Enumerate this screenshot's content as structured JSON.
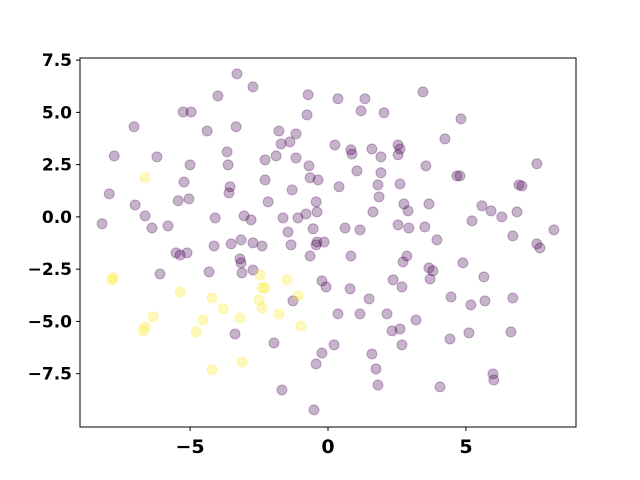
{
  "chart_data": {
    "type": "scatter",
    "xlim": [
      -8.99,
      8.99
    ],
    "ylim": [
      -10.05,
      7.6
    ],
    "xticks": [
      {
        "value": -5,
        "label": "−5"
      },
      0,
      5
    ],
    "yticks": [
      {
        "value": -7.5,
        "label": "−7.5"
      },
      {
        "value": -5,
        "label": "−5.0"
      },
      {
        "value": -2.5,
        "label": "−2.5"
      },
      {
        "value": 0,
        "label": "0.0"
      },
      2.5,
      {
        "value": 5,
        "label": "5.0"
      },
      7.5
    ],
    "grid": false,
    "series": [
      {
        "color": "#440154",
        "x": [
          -3.3,
          -2.72,
          -3.99,
          -5.25,
          -4.96,
          -7.03,
          -4.38,
          -3.33,
          1.2,
          1.34,
          -0.72,
          0.36,
          2.03,
          3.44,
          4.82,
          2.54,
          2.61,
          4.24,
          -1.78,
          -1.16,
          -0.76,
          -1.7,
          -1.38,
          -1.88,
          -1.16,
          -3.66,
          -3.62,
          -2.28,
          0.25,
          0.83,
          0.87,
          1.59,
          1.92,
          2.54,
          3.55,
          7.57,
          -7.75,
          -6.2,
          -5.0,
          -5.22,
          -3.55,
          -3.59,
          -2.28,
          -0.69,
          -0.65,
          -0.36,
          -1.3,
          0.4,
          1.05,
          1.92,
          1.81,
          1.85,
          2.61,
          2.75,
          2.9,
          3.66,
          4.78,
          4.67,
          6.92,
          7.03,
          5.58,
          5.91,
          6.3,
          6.85,
          -7.93,
          -6.99,
          -6.63,
          -6.38,
          -5.43,
          -5.04,
          -5.36,
          -5.8,
          -4.09,
          -3.04,
          -2.17,
          -1.63,
          -1.09,
          -0.8,
          -0.4,
          -0.43,
          -1.45,
          -2.79,
          -4.13,
          -3.51,
          -3.15,
          -2.72,
          -2.39,
          -0.54,
          -0.4,
          -0.14,
          0.62,
          1.16,
          1.63,
          2.54,
          2.93,
          3.51,
          3.95,
          5.22,
          6.7,
          8.19,
          -8.19,
          -6.09,
          -5.51,
          -5.11,
          -4.31,
          -3.19,
          -3.15,
          -3.12,
          -2.72,
          -1.34,
          -0.65,
          -0.43,
          -0.22,
          -0.07,
          0.83,
          0.8,
          1.49,
          2.36,
          2.72,
          2.86,
          2.68,
          3.66,
          3.7,
          3.8,
          4.46,
          4.89,
          5.18,
          5.69,
          5.65,
          7.57,
          7.68,
          -3.37,
          -1.96,
          -1.27,
          0.36,
          1.16,
          2.14,
          2.32,
          2.61,
          3.19,
          2.68,
          1.59,
          0.22,
          -0.22,
          -0.43,
          1.74,
          1.81,
          -1.67,
          -0.51,
          4.06,
          6.01,
          5.98,
          5.11,
          4.42,
          6.63,
          6.7
        ],
        "y": [
          6.84,
          6.22,
          5.79,
          5.02,
          5.02,
          4.31,
          4.11,
          4.31,
          5.07,
          5.65,
          5.84,
          5.65,
          4.98,
          5.98,
          4.69,
          3.44,
          3.25,
          3.73,
          4.11,
          3.97,
          4.88,
          3.49,
          3.59,
          2.92,
          2.82,
          3.11,
          2.49,
          2.73,
          3.44,
          3.21,
          3.01,
          3.25,
          2.87,
          2.97,
          2.44,
          2.54,
          2.92,
          2.87,
          2.49,
          1.67,
          1.44,
          1.15,
          1.77,
          2.44,
          1.87,
          1.77,
          1.29,
          1.44,
          2.2,
          2.11,
          1.53,
          0.96,
          1.58,
          0.62,
          0.29,
          0.62,
          1.96,
          1.96,
          1.53,
          1.48,
          0.53,
          0.29,
          0,
          0.24,
          1.1,
          0.57,
          0.05,
          -0.53,
          0.77,
          0.86,
          -1.82,
          -0.43,
          -0.05,
          0.05,
          0.72,
          -0.05,
          -0.05,
          0.14,
          0.24,
          0.72,
          -0.72,
          -0.14,
          -1.39,
          -1.29,
          -1.1,
          -1.24,
          -1.39,
          -0.57,
          -1.2,
          -1.2,
          -0.53,
          -0.62,
          0.24,
          -0.38,
          -0.53,
          -0.48,
          -1.1,
          -0.19,
          -0.91,
          -0.62,
          -0.33,
          -2.73,
          -1.72,
          -1.72,
          -2.63,
          -2.01,
          -2.2,
          -2.68,
          -2.54,
          -1.34,
          -1.87,
          -1.34,
          -3.06,
          -3.35,
          -1.87,
          -3.44,
          -3.92,
          -3.01,
          -2.15,
          -1.87,
          -3.35,
          -2.44,
          -2.97,
          -2.58,
          -3.83,
          -2.2,
          -4.21,
          -4.02,
          -2.87,
          -1.29,
          -1.48,
          -5.6,
          -6.03,
          -4.02,
          -4.64,
          -4.64,
          -4.64,
          -5.45,
          -5.36,
          -4.93,
          -6.12,
          -6.56,
          -6.12,
          -6.51,
          -7.03,
          -7.27,
          -8.04,
          -8.28,
          -9.23,
          -8.13,
          -7.8,
          -7.51,
          -5.55,
          -5.84,
          -5.5,
          -3.88
        ]
      },
      {
        "color": "#fde725",
        "x": [
          -6.63,
          -7.79,
          -7.83,
          -6.34,
          -6.63,
          -6.7,
          -5.36,
          -4.2,
          -3.8,
          -4.53,
          -4.78,
          -3.19,
          -3.12,
          -4.2,
          -2.46,
          -2.39,
          -2.28,
          -2.5,
          -2.39,
          -1.49,
          -1.09,
          -1.78,
          -0.98
        ],
        "y": [
          1.87,
          -2.92,
          -3.01,
          -4.78,
          -5.26,
          -5.45,
          -3.59,
          -3.88,
          -4.4,
          -4.93,
          -5.5,
          -4.83,
          -6.94,
          -7.32,
          -2.78,
          -3.4,
          -3.4,
          -3.97,
          -4.35,
          -3.01,
          -3.78,
          -4.64,
          -5.22
        ]
      }
    ]
  }
}
